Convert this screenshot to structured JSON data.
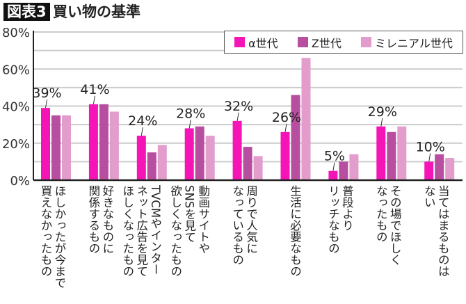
{
  "header": {
    "badge": "図表3",
    "title": "買い物の基準"
  },
  "colors": {
    "alpha": "#f514b6",
    "z": "#b84e9f",
    "millennial": "#e29dcd",
    "grid": "#cccccc",
    "axis": "#222222"
  },
  "chart_data": {
    "type": "bar",
    "title": "買い物の基準",
    "ylim": [
      0,
      80
    ],
    "yticks": [
      0,
      20,
      40,
      60,
      80
    ],
    "ytick_labels": [
      "0%",
      "20%",
      "40%",
      "60%",
      "80%"
    ],
    "grid": true,
    "legend_position": "top-right",
    "categories": [
      [
        "ほしかったが今まで",
        "買えなかったもの"
      ],
      [
        "好きなものに",
        "関係するもの"
      ],
      [
        "TVCMやインター",
        "ネット広告を見て",
        "ほしくなったもの"
      ],
      [
        "動画サイトや",
        "SNSを見て",
        "欲しくなったもの"
      ],
      [
        "周りで人気に",
        "なっているもの"
      ],
      [
        "生活に必要なもの"
      ],
      [
        "普段より",
        "リッチなもの"
      ],
      [
        "その場でほしく",
        "なったもの"
      ],
      [
        "当てはまるものは",
        "ない"
      ]
    ],
    "series": [
      {
        "name": "α世代",
        "values": [
          39,
          41,
          24,
          28,
          32,
          26,
          5,
          29,
          10
        ]
      },
      {
        "name": "Z世代",
        "values": [
          35,
          41,
          15,
          29,
          18,
          46,
          10,
          26,
          14
        ]
      },
      {
        "name": "ミレニアル世代",
        "values": [
          35,
          37,
          19,
          24,
          13,
          66,
          14,
          29,
          12
        ]
      }
    ],
    "data_labels": [
      "39%",
      "41%",
      "24%",
      "28%",
      "32%",
      "26%",
      "5%",
      "29%",
      "10%"
    ]
  }
}
